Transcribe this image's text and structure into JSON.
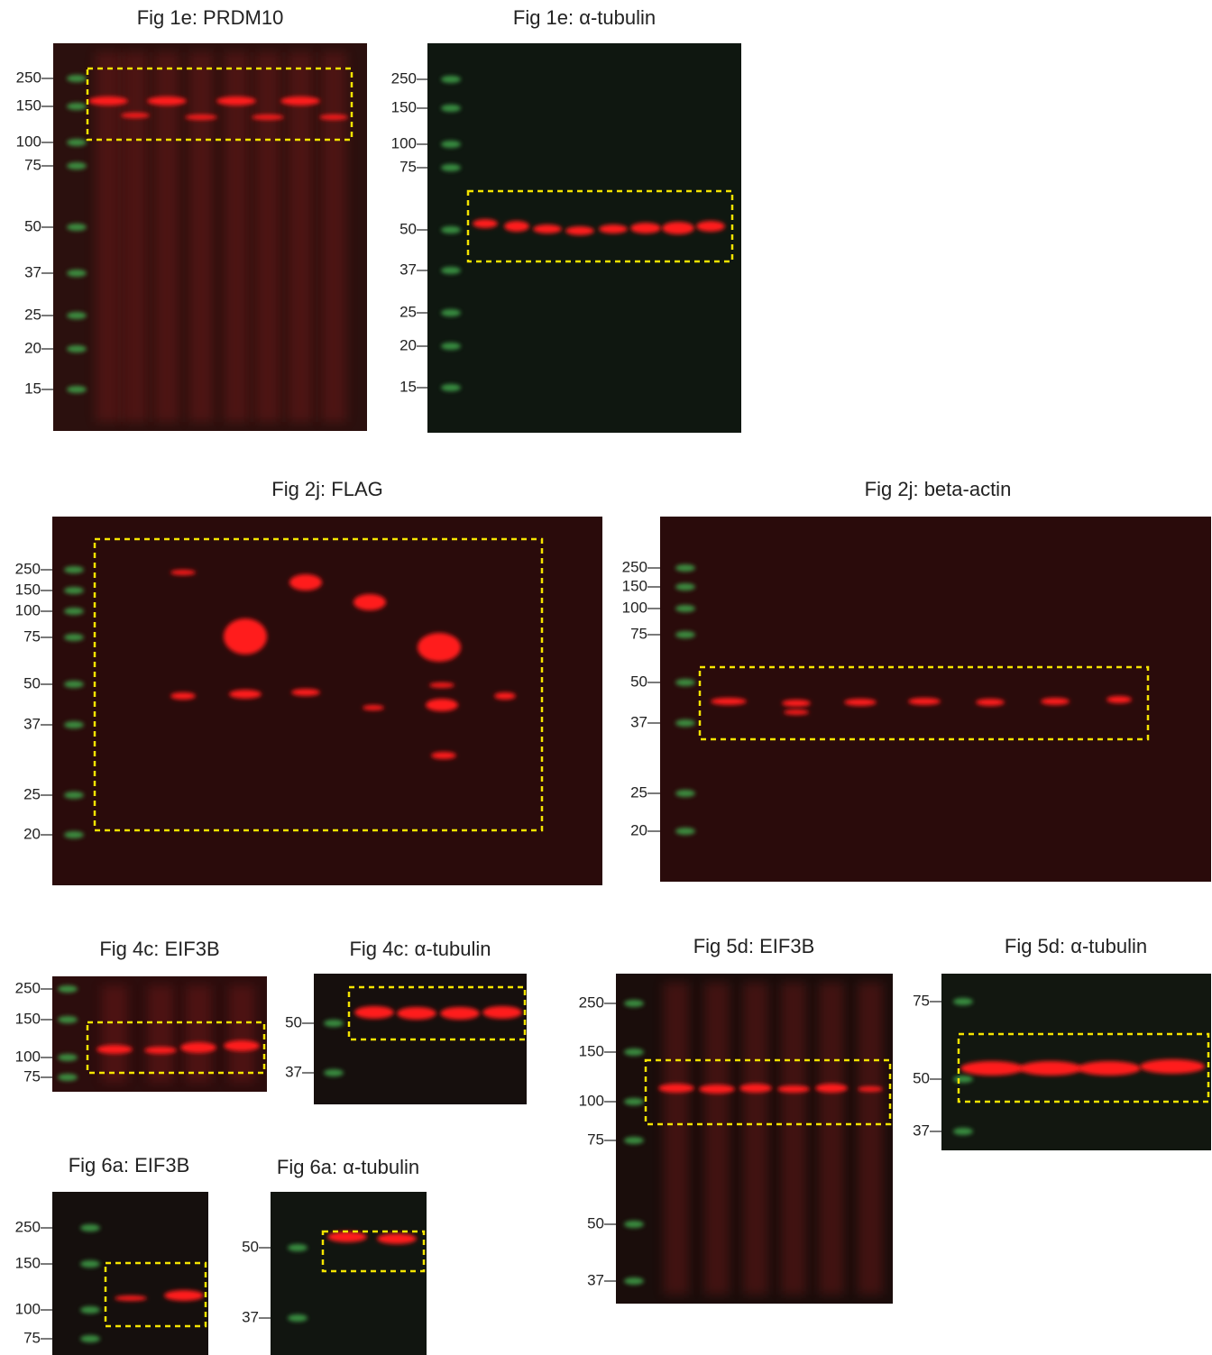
{
  "panels": [
    {
      "title": "Fig 1e: PRDM10",
      "markers": [
        "250",
        "150",
        "100",
        "75",
        "50",
        "37",
        "25",
        "20",
        "15"
      ]
    },
    {
      "title": "Fig 1e: α-tubulin",
      "markers": [
        "250",
        "150",
        "100",
        "75",
        "50",
        "37",
        "25",
        "20",
        "15"
      ]
    },
    {
      "title": "Fig 2j: FLAG",
      "markers": [
        "250",
        "150",
        "100",
        "75",
        "50",
        "37",
        "25",
        "20"
      ]
    },
    {
      "title": "Fig 2j: beta-actin",
      "markers": [
        "250",
        "150",
        "100",
        "75",
        "50",
        "37",
        "25",
        "20"
      ]
    },
    {
      "title": "Fig 4c: EIF3B",
      "markers": [
        "250",
        "150",
        "100",
        "75"
      ]
    },
    {
      "title": "Fig 4c: α-tubulin",
      "markers": [
        "50",
        "37"
      ]
    },
    {
      "title": "Fig 5d: EIF3B",
      "markers": [
        "250",
        "150",
        "100",
        "75",
        "50",
        "37"
      ]
    },
    {
      "title": "Fig 5d: α-tubulin",
      "markers": [
        "75",
        "50",
        "37"
      ]
    },
    {
      "title": "Fig 6a: EIF3B",
      "markers": [
        "250",
        "150",
        "100",
        "75"
      ]
    },
    {
      "title": "Fig 6a: α-tubulin",
      "markers": [
        "50",
        "37"
      ]
    }
  ]
}
